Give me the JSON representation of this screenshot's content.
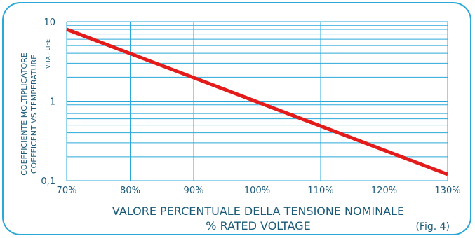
{
  "colors": {
    "border": "#2aa9d8",
    "grid": "#2aa9d8",
    "line": "#e41b1b",
    "text": "#1a5a78"
  },
  "chart_data": {
    "type": "line",
    "scale": {
      "y": "log"
    },
    "grid": true,
    "xlim": [
      70,
      130
    ],
    "ylim": [
      0.1,
      10
    ],
    "x_ticks": [
      "70%",
      "80%",
      "90%",
      "100%",
      "110%",
      "120%",
      "130%"
    ],
    "y_ticks": [
      "0,1",
      "1",
      "10"
    ],
    "ylabel_lines": [
      "COEFFICIENTE MOLTIPLICATORE",
      "COEFFICENT VS TEMPERATURE"
    ],
    "series_label": "VITA - LIFE",
    "xlabel_lines": [
      "VALORE PERCENTUALE DELLA TENSIONE NOMINALE",
      "% RATED VOLTAGE"
    ],
    "figure_label": "(Fig. 4)",
    "series": [
      {
        "name": "VITA - LIFE",
        "x": [
          70,
          130
        ],
        "y": [
          8,
          0.12
        ]
      }
    ]
  }
}
